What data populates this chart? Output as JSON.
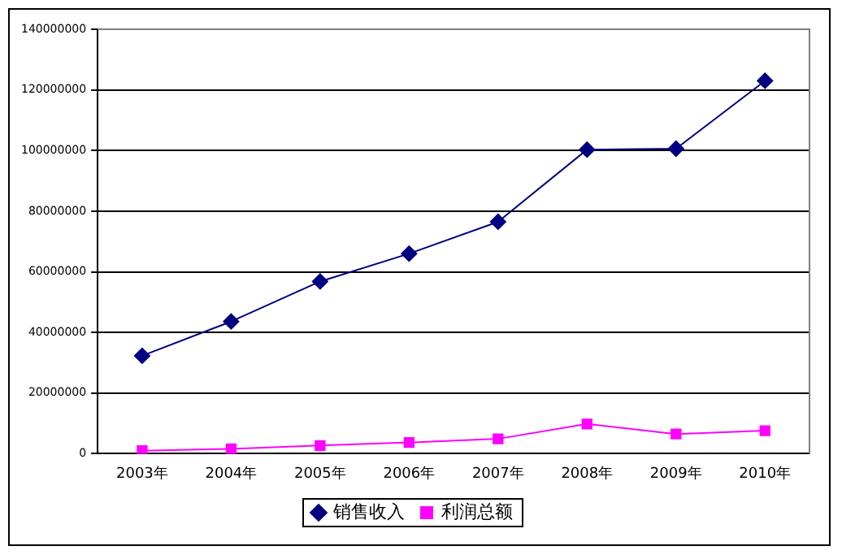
{
  "chart_data": {
    "type": "line",
    "categories": [
      "2003年",
      "2004年",
      "2005年",
      "2006年",
      "2007年",
      "2008年",
      "2009年",
      "2010年"
    ],
    "series": [
      {
        "name": "销售收入",
        "color": "#000080",
        "marker": "diamond",
        "values": [
          32300000,
          43600000,
          56800000,
          66000000,
          76500000,
          100300000,
          100600000,
          123000000
        ]
      },
      {
        "name": "利润总额",
        "color": "#ff00ff",
        "marker": "square",
        "values": [
          1000000,
          1600000,
          2700000,
          3700000,
          4900000,
          9800000,
          6500000,
          7600000
        ]
      }
    ],
    "ylim": [
      0,
      140000000
    ],
    "yticks": [
      0,
      20000000,
      40000000,
      60000000,
      80000000,
      100000000,
      120000000,
      140000000
    ],
    "grid": "y",
    "legend": "bottom",
    "line_style": "solid"
  }
}
